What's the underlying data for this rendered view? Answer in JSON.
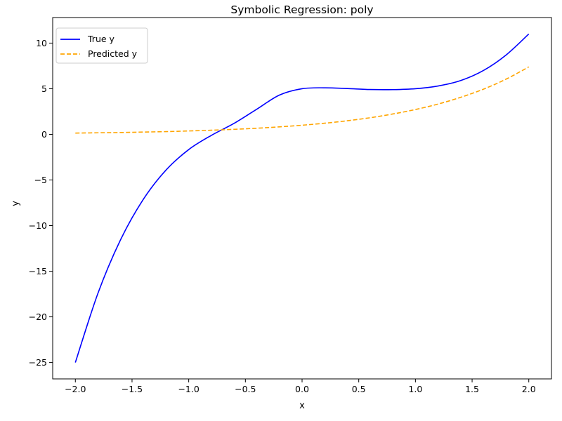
{
  "chart_data": {
    "type": "line",
    "title": "Symbolic Regression: poly",
    "xlabel": "x",
    "ylabel": "y",
    "xlim": [
      -2.2,
      2.2
    ],
    "ylim": [
      -26.8,
      12.8
    ],
    "xticks": [
      -2.0,
      -1.5,
      -1.0,
      -0.5,
      0.0,
      0.5,
      1.0,
      1.5,
      2.0
    ],
    "xtick_labels": [
      "−2.0",
      "−1.5",
      "−1.0",
      "−0.5",
      "0.0",
      "0.5",
      "1.0",
      "1.5",
      "2.0"
    ],
    "yticks": [
      -25,
      -20,
      -15,
      -10,
      -5,
      0,
      5,
      10
    ],
    "ytick_labels": [
      "−25",
      "−20",
      "−15",
      "−10",
      "−5",
      "0",
      "5",
      "10"
    ],
    "grid": false,
    "legend_position": "upper-left",
    "x": [
      -2.0,
      -1.8,
      -1.6,
      -1.4,
      -1.2,
      -1.0,
      -0.8,
      -0.6,
      -0.4,
      -0.2,
      0.0,
      0.2,
      0.4,
      0.6,
      0.8,
      1.0,
      1.2,
      1.4,
      1.6,
      1.8,
      2.0
    ],
    "series": [
      {
        "name": "True y",
        "color": "#0000ff",
        "style": "solid",
        "values": [
          -25.0,
          -17.39,
          -11.52,
          -7.11,
          -3.91,
          -1.67,
          -0.11,
          1.2,
          2.75,
          4.3,
          5.0,
          5.1,
          5.02,
          4.91,
          4.9,
          5.0,
          5.3,
          5.9,
          7.0,
          8.7,
          11.0
        ]
      },
      {
        "name": "Predicted y",
        "color": "#ffa500",
        "style": "dashed",
        "values": [
          0.14,
          0.17,
          0.2,
          0.25,
          0.3,
          0.37,
          0.45,
          0.55,
          0.67,
          0.82,
          1.0,
          1.22,
          1.49,
          1.82,
          2.23,
          2.72,
          3.32,
          4.06,
          4.95,
          6.05,
          7.39
        ]
      }
    ]
  }
}
